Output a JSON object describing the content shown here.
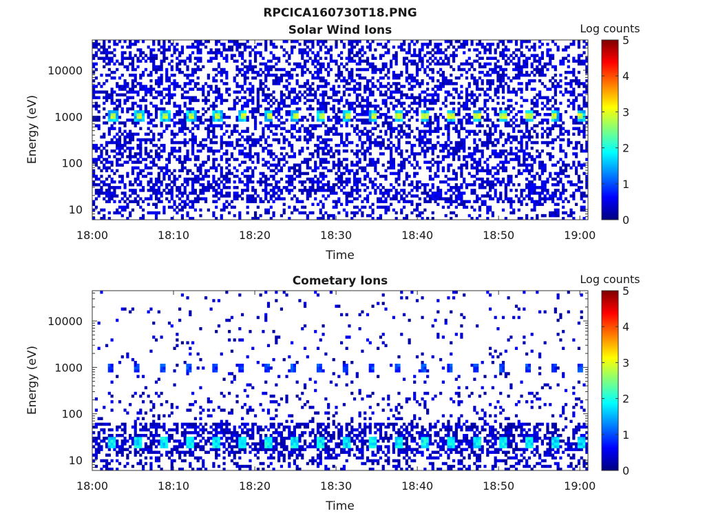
{
  "figure": {
    "title": "RPCICA160730T18.PNG"
  },
  "colors": {
    "colormap": [
      "#00007f",
      "#0000ff",
      "#007fff",
      "#00ffff",
      "#7fff7f",
      "#ffff00",
      "#ff7f00",
      "#ff0000",
      "#7f0000"
    ]
  },
  "chart_data": [
    {
      "type": "heatmap",
      "title": "Solar Wind Ions",
      "xlabel": "Time",
      "ylabel": "Energy (eV)",
      "x_range": [
        "18:00",
        "19:01"
      ],
      "x_ticks": [
        "18:00",
        "18:10",
        "18:20",
        "18:30",
        "18:40",
        "18:50",
        "19:00"
      ],
      "y_scale": "log",
      "y_range": [
        6,
        45000
      ],
      "y_ticks": [
        "10",
        "100",
        "1000",
        "10000"
      ],
      "colorbar": {
        "label": "Log counts",
        "range": [
          0,
          5
        ],
        "ticks": [
          "0",
          "1",
          "2",
          "3",
          "4",
          "5"
        ]
      },
      "features": [
        {
          "description_energy_eV": 1000,
          "peak_log_counts": 3,
          "period_minutes": 3.2
        }
      ]
    },
    {
      "type": "heatmap",
      "title": "Cometary Ions",
      "xlabel": "Time",
      "ylabel": "Energy (eV)",
      "x_range": [
        "18:00",
        "19:01"
      ],
      "x_ticks": [
        "18:00",
        "18:10",
        "18:20",
        "18:30",
        "18:40",
        "18:50",
        "19:00"
      ],
      "y_scale": "log",
      "y_range": [
        6,
        45000
      ],
      "y_ticks": [
        "10",
        "100",
        "1000",
        "10000"
      ],
      "colorbar": {
        "label": "Log counts",
        "range": [
          0,
          5
        ],
        "ticks": [
          "0",
          "1",
          "2",
          "3",
          "4",
          "5"
        ]
      },
      "features": [
        {
          "description_energy_eV": 25,
          "peak_log_counts": 2,
          "period_minutes": 3.2
        },
        {
          "description_energy_eV": 1000,
          "peak_log_counts": 1,
          "period_minutes": 3.2
        }
      ]
    }
  ]
}
